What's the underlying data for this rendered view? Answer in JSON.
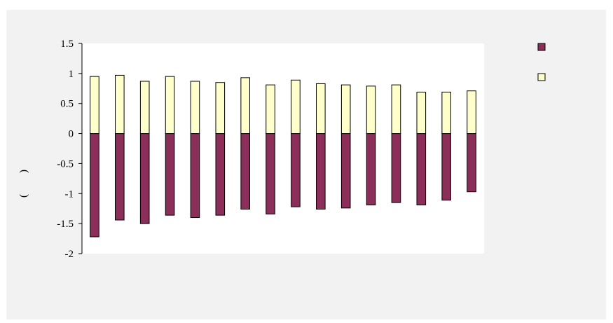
{
  "chart_data": {
    "type": "bar",
    "stacked": true,
    "categories": [
      "",
      "",
      "",
      "",
      "",
      "",
      "",
      "",
      "",
      "",
      "",
      "",
      "",
      "",
      "",
      ""
    ],
    "ylim": [
      -2,
      1.5
    ],
    "yticks": [
      1.5,
      1,
      0.5,
      0,
      -0.5,
      -1,
      -1.5,
      -2
    ],
    "ytick_labels": [
      "1.5",
      "1",
      "0.5",
      "0",
      "-0.5",
      "-1",
      "-1.5",
      "-2"
    ],
    "ylabel": "(        )",
    "grid": false,
    "legend_position": "top-right",
    "series": [
      {
        "name": "",
        "color": "#8b2f5a",
        "values": [
          -1.72,
          -1.44,
          -1.5,
          -1.36,
          -1.4,
          -1.36,
          -1.26,
          -1.34,
          -1.22,
          -1.26,
          -1.24,
          -1.19,
          -1.15,
          -1.19,
          -1.11,
          -0.97
        ]
      },
      {
        "name": "",
        "color": "#ffffcc",
        "values": [
          0.95,
          0.97,
          0.87,
          0.95,
          0.87,
          0.85,
          0.93,
          0.81,
          0.89,
          0.83,
          0.81,
          0.79,
          0.81,
          0.69,
          0.69,
          0.71
        ]
      }
    ]
  },
  "colors": {
    "background": "#f2f2f2",
    "plot_area": "#ffffff",
    "bar_outline": "#000000"
  }
}
